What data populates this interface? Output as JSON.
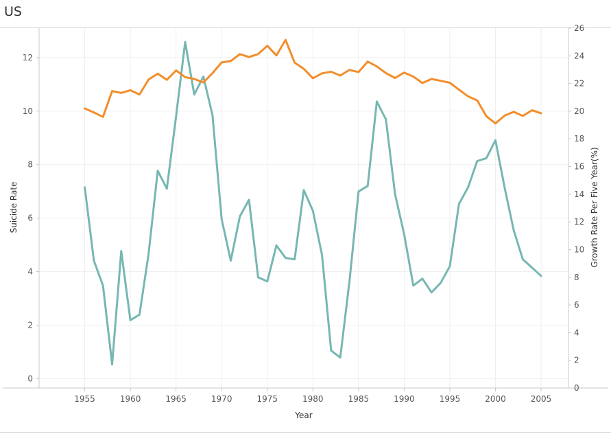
{
  "title": "US",
  "chart_data": {
    "type": "line",
    "title": "US",
    "xlabel": "Year",
    "ylabel_left": "Suicide Rate",
    "ylabel_right": "Growth Rate Per Five Year(%)",
    "xlim": [
      1950,
      2008
    ],
    "x_ticks": [
      1955,
      1960,
      1965,
      1970,
      1975,
      1980,
      1985,
      1990,
      1995,
      2000,
      2005
    ],
    "y_left_lim": [
      -0.35,
      13.1
    ],
    "y_left_ticks": [
      0,
      2,
      4,
      6,
      8,
      10,
      12
    ],
    "y_right_lim": [
      0,
      26
    ],
    "y_right_ticks": [
      0,
      2,
      4,
      6,
      8,
      10,
      12,
      14,
      16,
      18,
      20,
      22,
      24,
      26
    ],
    "grid": true,
    "series": [
      {
        "axis": "left",
        "color": "#f28e2b",
        "x": [
          1955,
          1956,
          1957,
          1958,
          1959,
          1960,
          1961,
          1962,
          1963,
          1964,
          1965,
          1966,
          1967,
          1968,
          1969,
          1970,
          1971,
          1972,
          1973,
          1974,
          1975,
          1976,
          1977,
          1978,
          1979,
          1980,
          1981,
          1982,
          1983,
          1984,
          1985,
          1986,
          1987,
          1988,
          1989,
          1990,
          1991,
          1992,
          1993,
          1994,
          1995,
          1996,
          1997,
          1998,
          1999,
          2000,
          2001,
          2002,
          2003,
          2004,
          2005
        ],
        "values": [
          10.1,
          9.95,
          9.78,
          10.75,
          10.68,
          10.78,
          10.62,
          11.18,
          11.4,
          11.17,
          11.52,
          11.27,
          11.2,
          11.07,
          11.42,
          11.82,
          11.87,
          12.13,
          12.02,
          12.13,
          12.44,
          12.08,
          12.66,
          11.81,
          11.58,
          11.23,
          11.41,
          11.47,
          11.33,
          11.54,
          11.46,
          11.85,
          11.67,
          11.42,
          11.24,
          11.44,
          11.29,
          11.05,
          11.2,
          11.13,
          11.06,
          10.8,
          10.55,
          10.4,
          9.81,
          9.54,
          9.83,
          9.97,
          9.82,
          10.03,
          9.92
        ]
      },
      {
        "axis": "right",
        "color": "#76b7b2",
        "x": [
          1955,
          1956,
          1957,
          1958,
          1959,
          1960,
          1961,
          1962,
          1963,
          1964,
          1965,
          1966,
          1967,
          1968,
          1969,
          1970,
          1971,
          1972,
          1973,
          1974,
          1975,
          1976,
          1977,
          1978,
          1979,
          1980,
          1981,
          1982,
          1983,
          1984,
          1985,
          1986,
          1987,
          1988,
          1989,
          1990,
          1991,
          1992,
          1993,
          1994,
          1995,
          1996,
          1997,
          1998,
          1999,
          2000,
          2001,
          2002,
          2003,
          2004,
          2005
        ],
        "values": [
          14.5,
          9.2,
          7.4,
          1.7,
          9.9,
          4.9,
          5.3,
          9.7,
          15.7,
          14.4,
          19.6,
          25.0,
          21.2,
          22.5,
          19.7,
          12.2,
          9.2,
          12.4,
          13.6,
          8.0,
          7.7,
          10.3,
          9.4,
          9.3,
          14.3,
          12.8,
          9.6,
          2.7,
          2.2,
          7.7,
          14.2,
          14.6,
          20.7,
          19.4,
          14.0,
          11.1,
          7.4,
          7.9,
          6.9,
          7.6,
          8.8,
          13.3,
          14.5,
          16.4,
          16.6,
          17.9,
          14.5,
          11.4,
          9.3,
          8.7,
          8.1
        ]
      }
    ]
  }
}
